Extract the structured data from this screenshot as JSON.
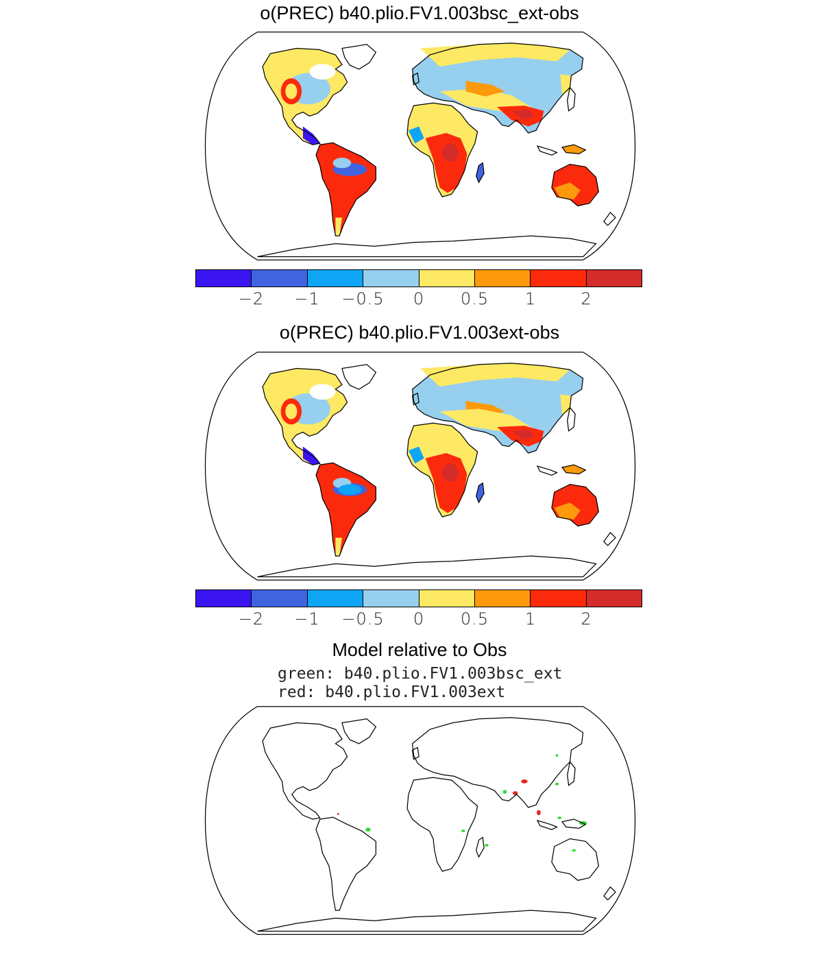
{
  "panels": [
    {
      "title": "o(PREC) b40.plio.FV1.003bsc_ext-obs"
    },
    {
      "title": "o(PREC) b40.plio.FV1.003ext-obs"
    }
  ],
  "colorbar": {
    "colors": [
      "#3b14f2",
      "#4064e0",
      "#0ea5f5",
      "#97cfef",
      "#fde963",
      "#fd9a0c",
      "#fc2a0c",
      "#d42b2b"
    ],
    "tick_labels": [
      "−2",
      "−1",
      "−0.5",
      "0",
      "0.5",
      "1",
      "2"
    ]
  },
  "comparison": {
    "title": "Model relative to Obs",
    "line1": "green: b40.plio.FV1.003bsc_ext",
    "line2": "red: b40.plio.FV1.003ext"
  },
  "palette": {
    "green": "#33dd33",
    "red": "#dd2a22",
    "coast": "#000000"
  }
}
